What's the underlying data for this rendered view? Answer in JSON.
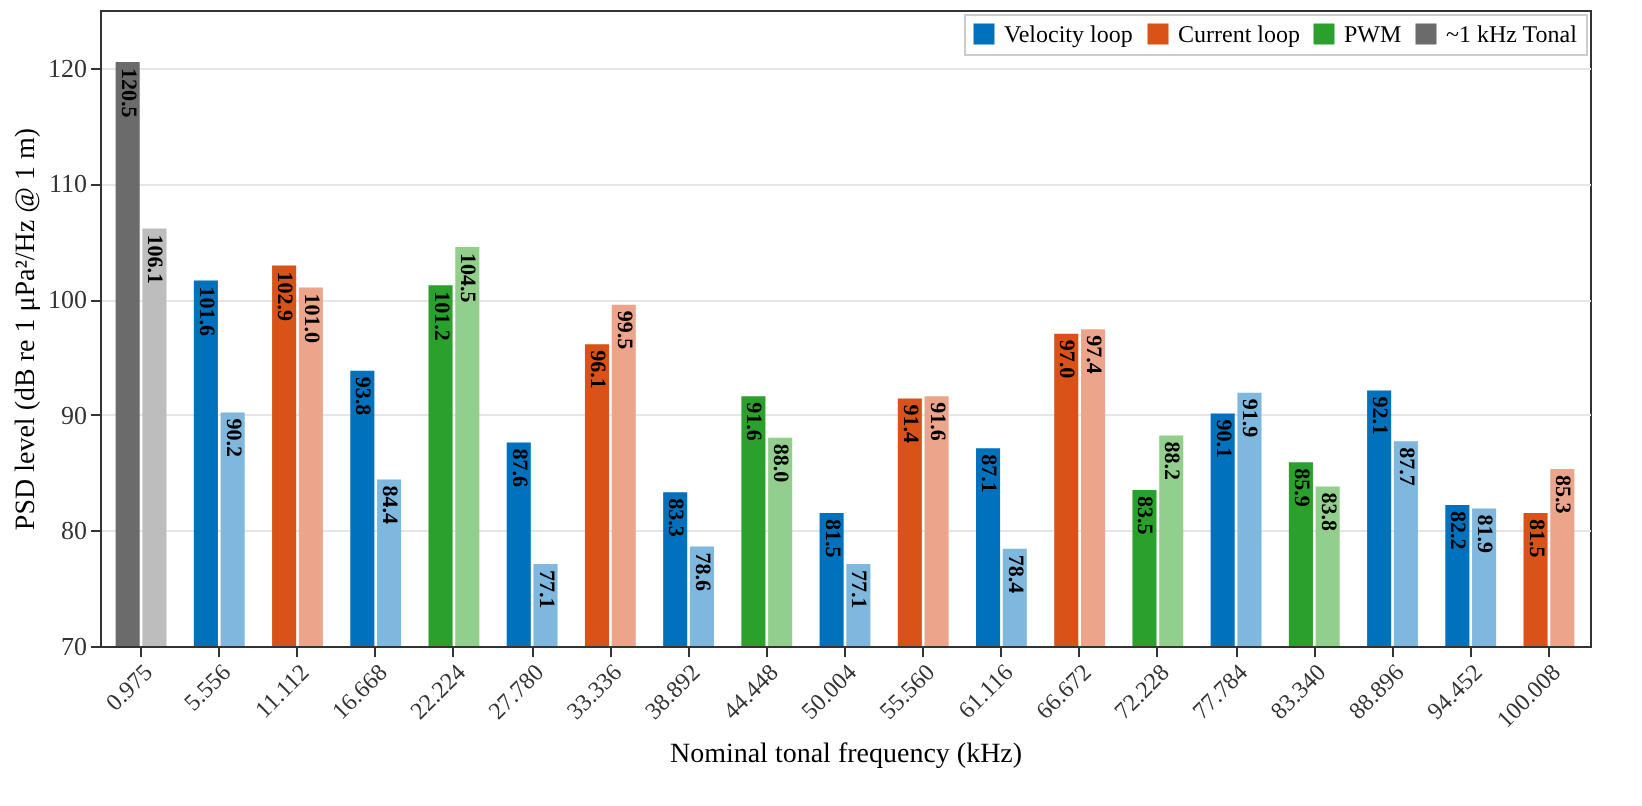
{
  "chart_data": {
    "type": "bar",
    "xlabel": "Nominal tonal frequency (kHz)",
    "ylabel": "PSD level (dB re 1 μPa²/Hz @ 1 m)",
    "categories": [
      "0.975",
      "5.556",
      "11.112",
      "16.668",
      "22.224",
      "27.780",
      "33.336",
      "38.892",
      "44.448",
      "50.004",
      "55.560",
      "61.116",
      "66.672",
      "72.228",
      "77.784",
      "83.340",
      "88.896",
      "94.452",
      "100.008"
    ],
    "series": [
      {
        "name": "Velocity loop",
        "color": "#0072bd",
        "values": [
          null,
          101.6,
          null,
          93.8,
          null,
          87.6,
          null,
          83.3,
          null,
          81.5,
          null,
          87.1,
          null,
          null,
          90.1,
          null,
          92.1,
          82.2,
          null
        ],
        "value_labels": [
          null,
          "101.6",
          null,
          "93.8",
          null,
          "87.6",
          null,
          "83.3",
          null,
          "81.5",
          null,
          "87.1",
          null,
          null,
          "90.1",
          null,
          "92.1",
          "82.2",
          null
        ]
      },
      {
        "name": "Current loop",
        "color": "#d95319",
        "values": [
          null,
          null,
          102.9,
          null,
          null,
          null,
          96.1,
          null,
          null,
          null,
          91.4,
          null,
          97.0,
          null,
          null,
          null,
          null,
          null,
          81.5
        ],
        "value_labels": [
          null,
          null,
          "102.9",
          null,
          null,
          null,
          "96.1",
          null,
          null,
          null,
          "91.4",
          null,
          "97.0",
          null,
          null,
          null,
          null,
          null,
          "81.5"
        ]
      },
      {
        "name": "PWM",
        "color": "#2ca02c",
        "values": [
          null,
          null,
          null,
          null,
          101.2,
          null,
          null,
          null,
          91.6,
          null,
          null,
          null,
          null,
          83.5,
          null,
          85.9,
          null,
          null,
          null
        ],
        "value_labels": [
          null,
          null,
          null,
          null,
          "101.2",
          null,
          null,
          null,
          "91.6",
          null,
          null,
          null,
          null,
          "83.5",
          null,
          "85.9",
          null,
          null,
          null
        ]
      },
      {
        "name": "~1 kHz Tonal",
        "color": "#6b6b6b",
        "values": [
          120.5,
          null,
          null,
          null,
          null,
          null,
          null,
          null,
          null,
          null,
          null,
          null,
          null,
          null,
          null,
          null,
          null,
          null,
          null
        ],
        "value_labels": [
          "120.5",
          null,
          null,
          null,
          null,
          null,
          null,
          null,
          null,
          null,
          null,
          null,
          null,
          null,
          null,
          null,
          null,
          null,
          null
        ]
      },
      {
        "color": "#7fb8de",
        "values": [
          null,
          90.2,
          null,
          84.4,
          null,
          77.1,
          null,
          78.6,
          null,
          77.1,
          null,
          78.4,
          null,
          null,
          91.9,
          null,
          87.7,
          81.9,
          null
        ],
        "value_labels": [
          null,
          "90.2",
          null,
          "84.4",
          null,
          "77.1",
          null,
          "78.6",
          null,
          "77.1",
          null,
          "78.4",
          null,
          null,
          "91.9",
          null,
          "87.7",
          "81.9",
          null
        ]
      },
      {
        "color": "#eca58a",
        "values": [
          null,
          null,
          101.0,
          null,
          null,
          null,
          99.5,
          null,
          null,
          null,
          91.6,
          null,
          97.4,
          null,
          null,
          null,
          null,
          null,
          85.3
        ],
        "value_labels": [
          null,
          null,
          "101.0",
          null,
          null,
          null,
          "99.5",
          null,
          null,
          null,
          "91.6",
          null,
          "97.4",
          null,
          null,
          null,
          null,
          null,
          "85.3"
        ]
      },
      {
        "color": "#93cf8c",
        "values": [
          null,
          null,
          null,
          null,
          104.5,
          null,
          null,
          null,
          88.0,
          null,
          null,
          null,
          null,
          88.2,
          null,
          83.8,
          null,
          null,
          null
        ],
        "value_labels": [
          null,
          null,
          null,
          null,
          "104.5",
          null,
          null,
          null,
          "88.0",
          null,
          null,
          null,
          null,
          "88.2",
          null,
          "83.8",
          null,
          null,
          null
        ]
      },
      {
        "color": "#bdbdbd",
        "values": [
          106.1,
          null,
          null,
          null,
          null,
          null,
          null,
          null,
          null,
          null,
          null,
          null,
          null,
          null,
          null,
          null,
          null,
          null,
          null
        ],
        "value_labels": [
          "106.1",
          null,
          null,
          null,
          null,
          null,
          null,
          null,
          null,
          null,
          null,
          null,
          null,
          null,
          null,
          null,
          null,
          null,
          null
        ]
      }
    ],
    "ylim": [
      70,
      125
    ],
    "yticks": [
      70,
      80,
      90,
      100,
      110,
      120
    ],
    "grid": "y",
    "legend": "top right"
  }
}
